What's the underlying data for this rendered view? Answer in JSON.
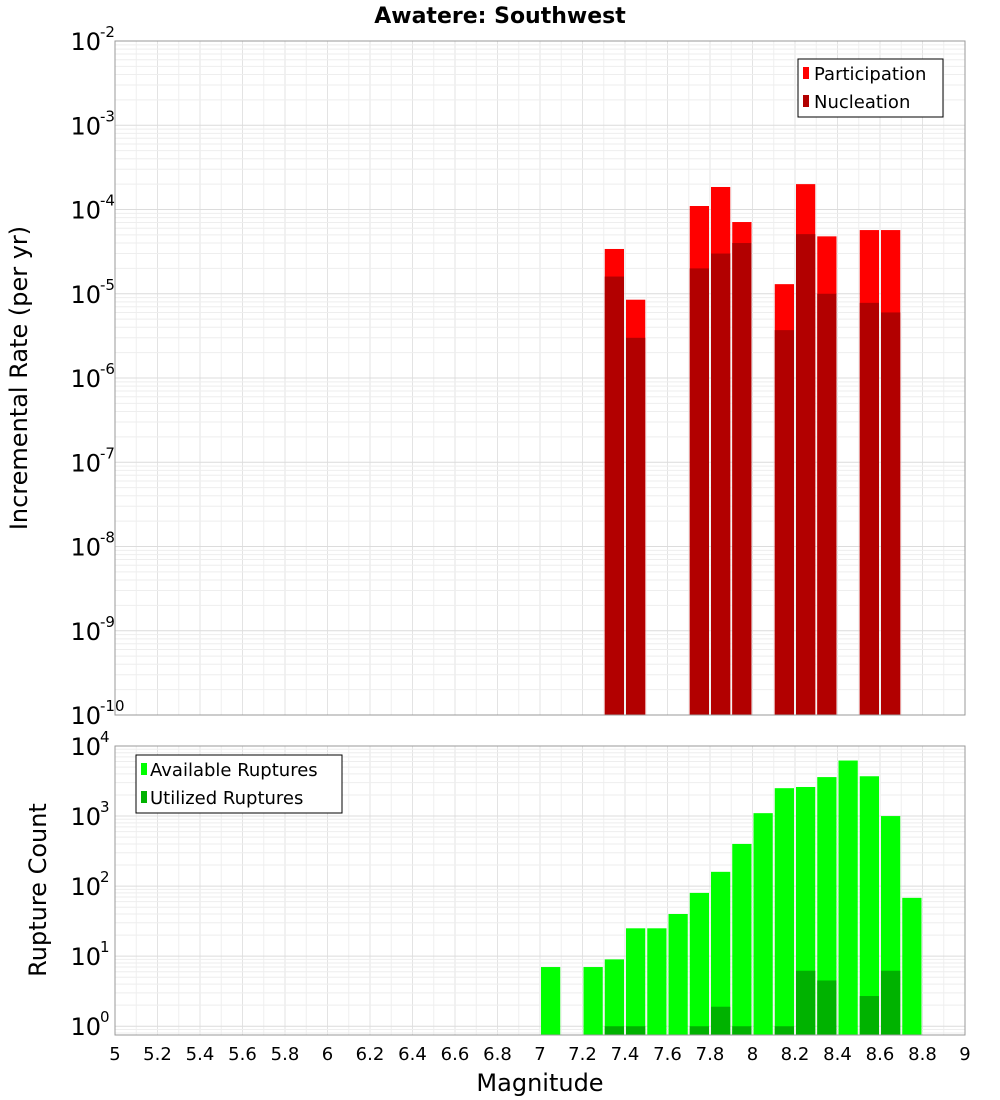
{
  "chart_data": [
    {
      "type": "bar",
      "title": "Awatere: Southwest",
      "xlabel": "",
      "ylabel": "Incremental Rate (per yr)",
      "yscale": "log",
      "ylim": [
        1e-10,
        0.01
      ],
      "xlim": [
        5,
        9
      ],
      "bar_width": 0.1,
      "grid": true,
      "legend_position": "top-right",
      "y_tick_exponents": [
        "-10",
        "-9",
        "-8",
        "-7",
        "-6",
        "-5",
        "-4",
        "-3",
        "-2"
      ],
      "y_tick_base": "10",
      "series": [
        {
          "name": "Participation",
          "color": "#ff0000",
          "x": [
            7.35,
            7.45,
            7.75,
            7.85,
            7.95,
            8.15,
            8.25,
            8.35,
            8.55,
            8.65
          ],
          "values": [
            3.4e-05,
            8.5e-06,
            0.00011,
            0.000185,
            7.1e-05,
            1.3e-05,
            0.0002,
            4.8e-05,
            5.7e-05,
            5.7e-05
          ]
        },
        {
          "name": "Nucleation",
          "color": "#b20000",
          "x": [
            7.35,
            7.45,
            7.75,
            7.85,
            7.95,
            8.15,
            8.25,
            8.35,
            8.55,
            8.65
          ],
          "values": [
            1.6e-05,
            3e-06,
            2e-05,
            3e-05,
            4e-05,
            3.7e-06,
            5.1e-05,
            1e-05,
            7.8e-06,
            6e-06
          ]
        }
      ]
    },
    {
      "type": "bar",
      "title": "",
      "xlabel": "Magnitude",
      "ylabel": "Rupture Count",
      "yscale": "log",
      "ylim": [
        0.75,
        10000
      ],
      "xlim": [
        5,
        9
      ],
      "bar_width": 0.1,
      "grid": true,
      "legend_position": "top-left",
      "x_ticks": [
        "5",
        "5.2",
        "5.4",
        "5.6",
        "5.8",
        "6",
        "6.2",
        "6.4",
        "6.6",
        "6.8",
        "7",
        "7.2",
        "7.4",
        "7.6",
        "7.8",
        "8",
        "8.2",
        "8.4",
        "8.6",
        "8.8",
        "9"
      ],
      "y_tick_exponents": [
        "0",
        "1",
        "2",
        "3",
        "4"
      ],
      "y_tick_base": "10",
      "series": [
        {
          "name": "Available Ruptures",
          "color": "#00ff00",
          "x": [
            7.05,
            7.25,
            7.35,
            7.45,
            7.55,
            7.65,
            7.75,
            7.85,
            7.95,
            8.05,
            8.15,
            8.25,
            8.35,
            8.45,
            8.55,
            8.65,
            8.75
          ],
          "values": [
            7,
            7,
            9,
            25,
            25,
            40,
            80,
            160,
            400,
            1100,
            2500,
            2600,
            3600,
            6200,
            3700,
            1000,
            68
          ]
        },
        {
          "name": "Utilized Ruptures",
          "color": "#00b200",
          "x": [
            7.35,
            7.45,
            7.75,
            7.85,
            7.95,
            8.15,
            8.25,
            8.35,
            8.55,
            8.65
          ],
          "values": [
            1,
            1,
            1,
            1.9,
            1,
            1,
            6.2,
            4.5,
            2.7,
            6.2
          ]
        }
      ]
    }
  ]
}
